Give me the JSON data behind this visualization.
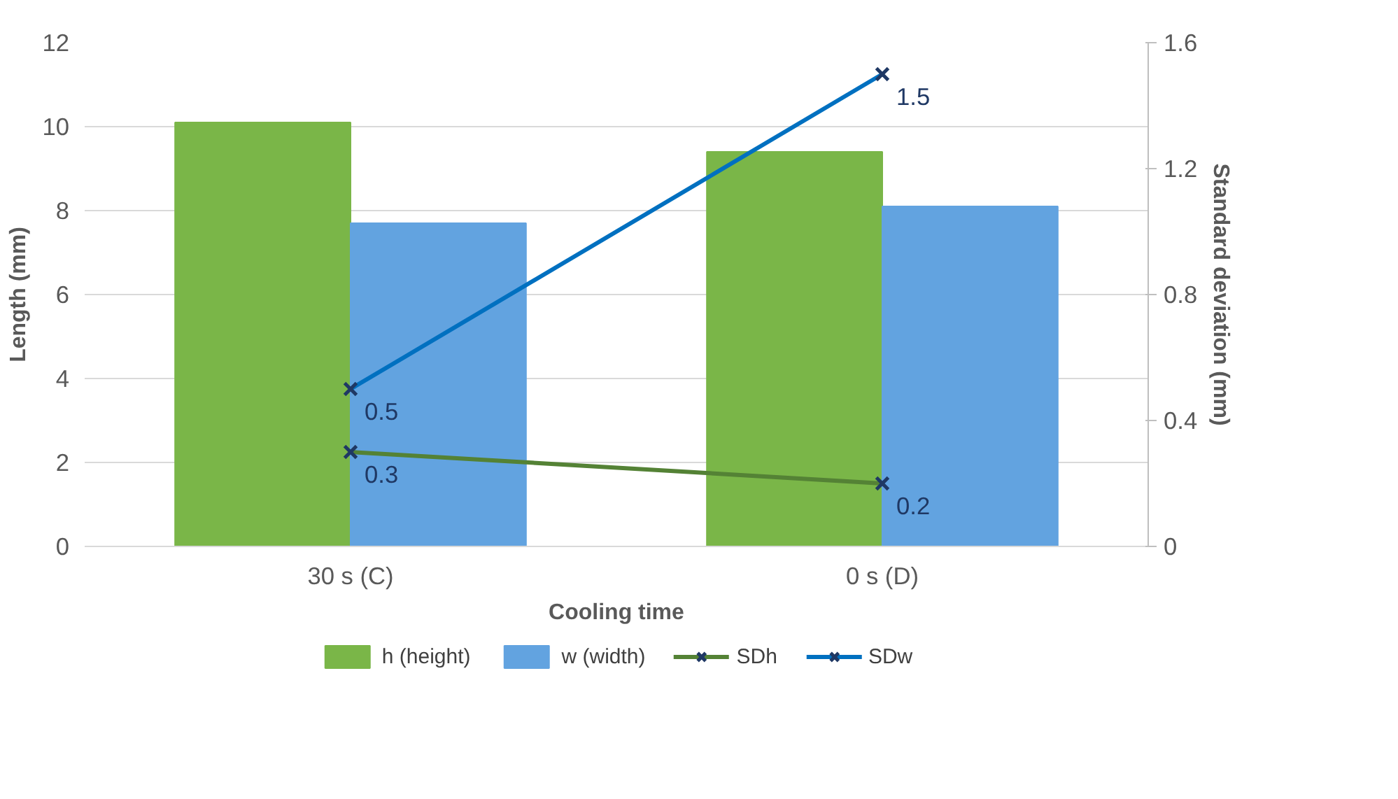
{
  "chart_data": {
    "type": "bar",
    "xlabel": "Cooling time",
    "ylabel": "Length (mm)",
    "y2label": "Standard deviation (mm)",
    "categories": [
      "30 s (C)",
      "0 s (D)"
    ],
    "series": [
      {
        "name": "h (height)",
        "color": "#7ab648",
        "values": [
          10.1,
          9.4
        ]
      },
      {
        "name": "w (width)",
        "color": "#62a3e0",
        "values": [
          7.7,
          8.1
        ]
      },
      {
        "name": "SDh",
        "type": "line",
        "axis": "y2",
        "color": "#548235",
        "values": [
          0.3,
          0.2
        ],
        "data_labels": true
      },
      {
        "name": "SDw",
        "type": "line",
        "axis": "y2",
        "color": "#0070c0",
        "values": [
          0.5,
          1.5
        ],
        "data_labels": true
      }
    ],
    "ylim": [
      0,
      12
    ],
    "yticks": [
      0,
      2,
      4,
      6,
      8,
      10,
      12
    ],
    "y2lim": [
      0,
      1.6
    ],
    "y2ticks": [
      0,
      0.4,
      0.8,
      1.2,
      1.6
    ],
    "grid": "y",
    "legend": "bottom",
    "marker": "cross",
    "line_style": "solid"
  }
}
